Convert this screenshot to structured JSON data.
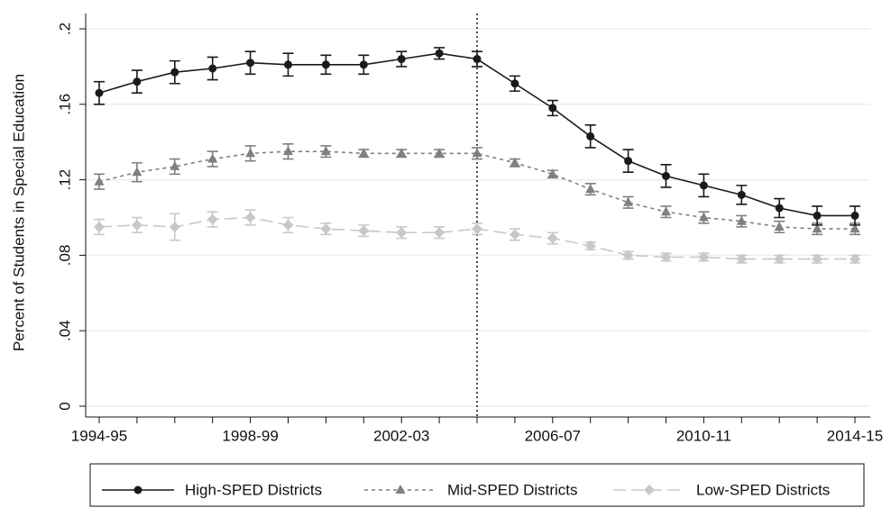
{
  "chart_data": {
    "type": "line",
    "y_label": "Percent of Students in Special Education",
    "categories": [
      "1994-95",
      null,
      null,
      null,
      "1998-99",
      null,
      null,
      null,
      "2002-03",
      null,
      null,
      null,
      "2006-07",
      null,
      null,
      null,
      "2010-11",
      null,
      null,
      null,
      "2014-15"
    ],
    "series": [
      {
        "name": "High-SPED Districts",
        "color": "#1a1a1a",
        "marker": "circle",
        "dash": "solid",
        "values": [
          0.166,
          0.172,
          0.177,
          0.179,
          0.182,
          0.181,
          0.181,
          0.181,
          0.184,
          0.187,
          0.184,
          0.171,
          0.158,
          0.143,
          0.13,
          0.122,
          0.117,
          0.112,
          0.105,
          0.101,
          0.101
        ],
        "errors": [
          0.006,
          0.006,
          0.006,
          0.006,
          0.006,
          0.006,
          0.005,
          0.005,
          0.004,
          0.003,
          0.004,
          0.004,
          0.004,
          0.006,
          0.006,
          0.006,
          0.006,
          0.005,
          0.005,
          0.005,
          0.005
        ]
      },
      {
        "name": "Mid-SPED Districts",
        "color": "#808080",
        "marker": "triangle",
        "dash": "dash",
        "values": [
          0.119,
          0.124,
          0.127,
          0.131,
          0.134,
          0.135,
          0.135,
          0.134,
          0.134,
          0.134,
          0.134,
          0.129,
          0.123,
          0.115,
          0.108,
          0.103,
          0.1,
          0.098,
          0.095,
          0.094,
          0.094
        ],
        "errors": [
          0.004,
          0.005,
          0.004,
          0.004,
          0.004,
          0.004,
          0.003,
          0.002,
          0.002,
          0.002,
          0.003,
          0.002,
          0.002,
          0.003,
          0.003,
          0.003,
          0.003,
          0.003,
          0.003,
          0.003,
          0.003
        ]
      },
      {
        "name": "Low-SPED Districts",
        "color": "#c8c8c8",
        "marker": "diamond",
        "dash": "longdash",
        "values": [
          0.095,
          0.096,
          0.095,
          0.099,
          0.1,
          0.096,
          0.094,
          0.093,
          0.092,
          0.092,
          0.094,
          0.091,
          0.089,
          0.085,
          0.08,
          0.079,
          0.079,
          0.078,
          0.078,
          0.078,
          0.078
        ],
        "errors": [
          0.004,
          0.004,
          0.007,
          0.004,
          0.004,
          0.004,
          0.003,
          0.003,
          0.003,
          0.003,
          0.003,
          0.003,
          0.003,
          0.002,
          0.002,
          0.002,
          0.002,
          0.002,
          0.002,
          0.002,
          0.002
        ]
      }
    ],
    "ylim": [
      0,
      0.2
    ],
    "yticks": [
      0,
      {
        "value": 0.04,
        "label": ".04"
      },
      {
        "value": 0.08,
        "label": ".08"
      },
      {
        "value": 0.12,
        "label": ".12"
      },
      {
        "value": 0.16,
        "label": ".16"
      },
      {
        "value": 0.2,
        "label": ".2"
      }
    ],
    "grid": true,
    "vline_index": 10,
    "legend": "bottom"
  }
}
